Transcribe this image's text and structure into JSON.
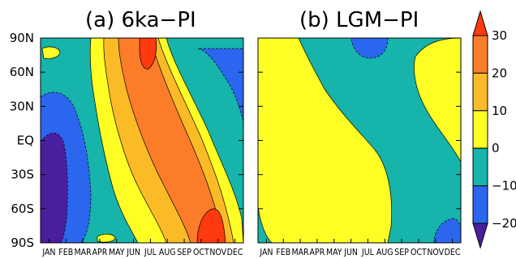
{
  "chart_data": [
    {
      "type": "contour",
      "title": "(a) 6ka−PI",
      "x_ticks": [
        "JAN",
        "FEB",
        "MAR",
        "APR",
        "MAY",
        "JUN",
        "JUL",
        "AUG",
        "SEP",
        "OCT",
        "NOV",
        "DEC"
      ],
      "y_ticks": [
        "90N",
        "60N",
        "30N",
        "EQ",
        "30S",
        "60S",
        "90S"
      ],
      "y_values": [
        90,
        60,
        30,
        0,
        -30,
        -60,
        -90
      ],
      "regions": [
        {
          "level": "0 to 10",
          "description": "warming band from JUN near equator toward high southern latitudes by SEP–NOV"
        },
        {
          "level": "10 to 20",
          "description": "core band from JUN at northern high latitudes to OCT–NOV near 90S"
        },
        {
          "level": "20 to 30",
          "description": "maxima near JUL at 90N and OCT at 60S–90S"
        },
        {
          "level": "-10 to -20",
          "description": "minimum around JAN–FEB from EQ to 90S"
        },
        {
          "level": "-10 to 0",
          "description": "negative anomalies NOV–DEC in northern latitudes and JAN–MAR in the tropics and south"
        }
      ]
    },
    {
      "type": "contour",
      "title": "(b) LGM−PI",
      "x_ticks": [
        "JAN",
        "FEB",
        "MAR",
        "APR",
        "MAY",
        "JUN",
        "JUL",
        "AUG",
        "SEP",
        "OCT",
        "NOV",
        "DEC"
      ],
      "y_ticks": [
        "90N",
        "60N",
        "30N",
        "EQ",
        "30S",
        "60S",
        "90S"
      ],
      "y_values": [
        90,
        60,
        30,
        0,
        -30,
        -60,
        -90
      ],
      "regions": [
        {
          "level": "0 to 10",
          "description": "broad diagonal region from JAN at 90N to JUL–AUG at 90S; also OCT–DEC in northern latitudes"
        },
        {
          "level": "-10 to 0",
          "description": "background over remaining area"
        },
        {
          "level": "-10 to -20",
          "description": "small patches near AUG–SEP at 90N and NOV–DEC at 90S"
        }
      ]
    }
  ],
  "colorbar": {
    "levels": [
      "30",
      "20",
      "10",
      "0",
      "−10",
      "−20"
    ],
    "colors": [
      "#ff3a0e",
      "#fb7d2a",
      "#fbbb26",
      "#fefe24",
      "#16b4aa",
      "#2b66ee",
      "#4a1f9f"
    ]
  }
}
